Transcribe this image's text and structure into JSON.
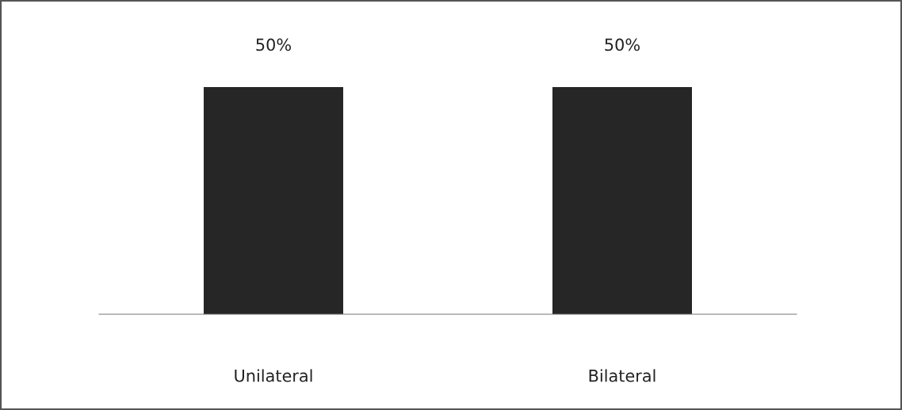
{
  "chart_data": {
    "type": "bar",
    "categories": [
      "Unilateral",
      "Bilateral"
    ],
    "values": [
      50,
      50
    ],
    "value_labels": [
      "50%",
      "50%"
    ],
    "color": "#262626",
    "grid": false,
    "legend": false
  }
}
